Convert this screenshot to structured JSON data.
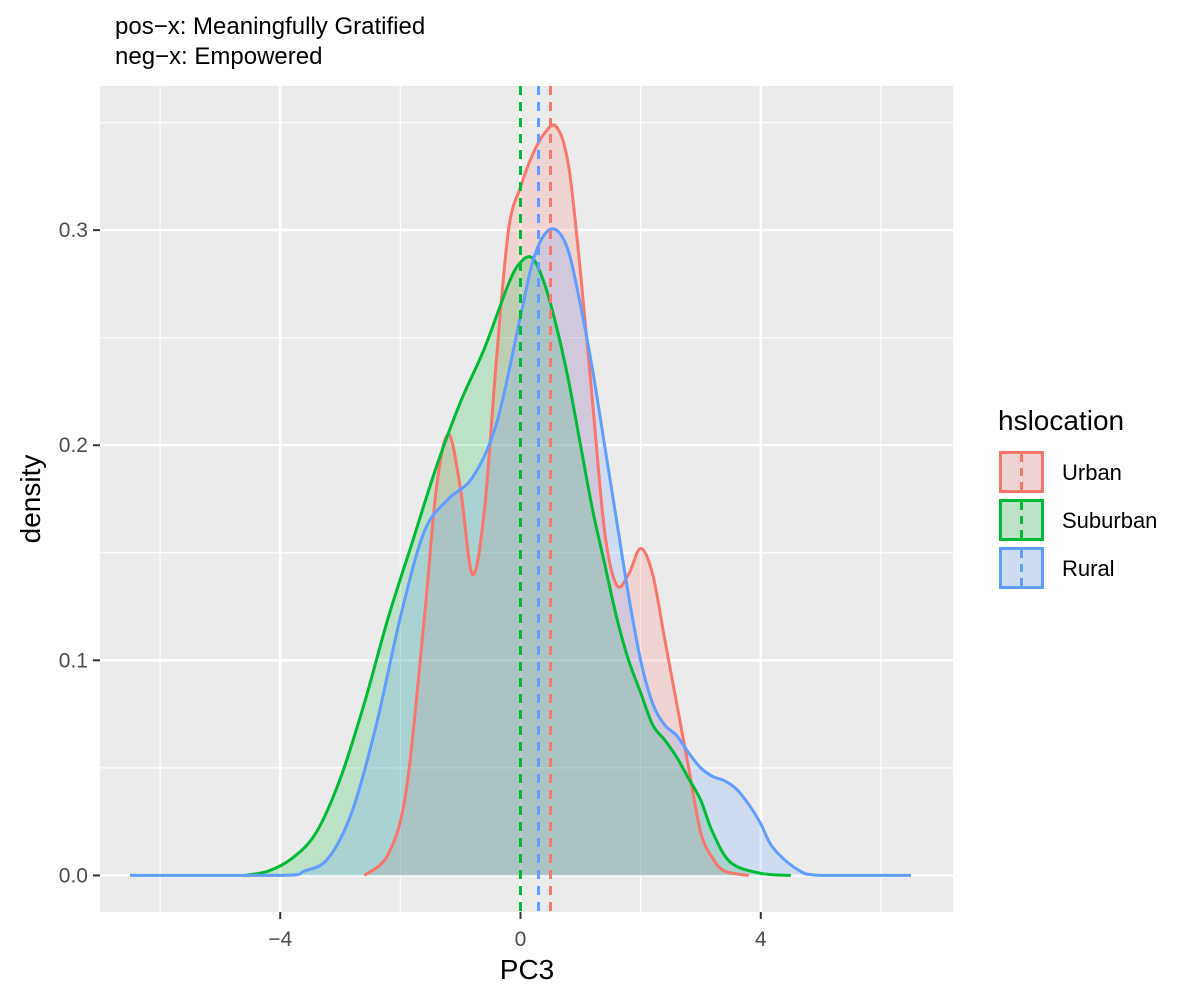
{
  "chart_data": {
    "type": "area",
    "title": "pos−x: Meaningfully Gratified",
    "subtitle": "neg−x: Empowered",
    "xlabel": "PC3",
    "ylabel": "density",
    "xlim": [
      -7.0,
      7.2
    ],
    "ylim": [
      -0.017,
      0.367
    ],
    "x_ticks": [
      -4,
      0,
      4
    ],
    "x_tick_labels": [
      "−4",
      "0",
      "4"
    ],
    "y_ticks": [
      0.0,
      0.1,
      0.2,
      0.3
    ],
    "y_tick_labels": [
      "0.0",
      "0.1",
      "0.2",
      "0.3"
    ],
    "grid": true,
    "legend": {
      "title": "hslocation",
      "position": "right"
    },
    "colors": {
      "Urban": "#F8766D",
      "Suburban": "#00BA38",
      "Rural": "#619CFF"
    },
    "series": [
      {
        "name": "Urban",
        "mean": 0.5,
        "x": [
          -2.6,
          -2.2,
          -1.9,
          -1.6,
          -1.4,
          -1.2,
          -1.0,
          -0.8,
          -0.6,
          -0.4,
          -0.2,
          0.0,
          0.2,
          0.4,
          0.6,
          0.8,
          1.0,
          1.2,
          1.4,
          1.6,
          1.8,
          2.0,
          2.2,
          2.4,
          2.6,
          2.8,
          3.0,
          3.2,
          3.4,
          3.8
        ],
        "y": [
          0.0,
          0.01,
          0.04,
          0.12,
          0.18,
          0.205,
          0.18,
          0.14,
          0.17,
          0.24,
          0.3,
          0.32,
          0.335,
          0.345,
          0.348,
          0.33,
          0.28,
          0.22,
          0.16,
          0.135,
          0.14,
          0.152,
          0.14,
          0.11,
          0.08,
          0.05,
          0.02,
          0.008,
          0.002,
          0.0
        ]
      },
      {
        "name": "Suburban",
        "mean": 0.0,
        "x": [
          -4.6,
          -4.2,
          -3.8,
          -3.4,
          -3.0,
          -2.6,
          -2.2,
          -1.8,
          -1.4,
          -1.0,
          -0.6,
          -0.2,
          0.0,
          0.2,
          0.4,
          0.6,
          0.8,
          1.0,
          1.2,
          1.4,
          1.6,
          1.8,
          2.0,
          2.2,
          2.4,
          2.6,
          2.8,
          3.0,
          3.2,
          3.5,
          4.0,
          4.5
        ],
        "y": [
          0.0,
          0.002,
          0.008,
          0.02,
          0.045,
          0.08,
          0.12,
          0.155,
          0.19,
          0.22,
          0.245,
          0.275,
          0.285,
          0.287,
          0.275,
          0.255,
          0.23,
          0.2,
          0.17,
          0.145,
          0.12,
          0.1,
          0.085,
          0.07,
          0.063,
          0.055,
          0.045,
          0.035,
          0.02,
          0.006,
          0.001,
          0.0
        ]
      },
      {
        "name": "Rural",
        "mean": 0.3,
        "x": [
          -6.5,
          -4.0,
          -3.6,
          -3.2,
          -2.8,
          -2.4,
          -2.0,
          -1.6,
          -1.2,
          -0.8,
          -0.4,
          0.0,
          0.2,
          0.4,
          0.6,
          0.8,
          1.0,
          1.2,
          1.4,
          1.6,
          1.8,
          2.0,
          2.2,
          2.4,
          2.6,
          2.8,
          3.0,
          3.2,
          3.4,
          3.6,
          3.8,
          4.0,
          4.2,
          4.6,
          5.0,
          6.5
        ],
        "y": [
          0.0,
          0.0,
          0.002,
          0.008,
          0.03,
          0.07,
          0.12,
          0.16,
          0.175,
          0.185,
          0.21,
          0.26,
          0.285,
          0.298,
          0.3,
          0.29,
          0.265,
          0.235,
          0.2,
          0.165,
          0.13,
          0.1,
          0.08,
          0.07,
          0.065,
          0.057,
          0.05,
          0.046,
          0.044,
          0.04,
          0.033,
          0.024,
          0.013,
          0.003,
          0.0,
          0.0
        ]
      }
    ]
  }
}
